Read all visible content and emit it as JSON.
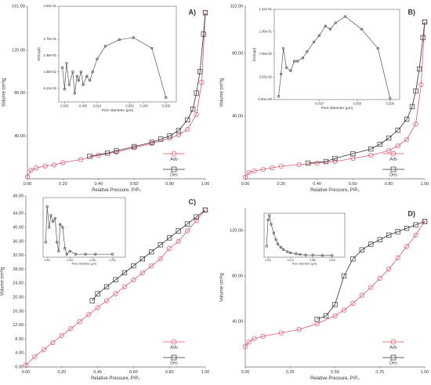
{
  "chart_data": [
    {
      "type": "line",
      "panel_label": "A)",
      "ylabel": "Volume cm³/g",
      "xlabel": "Relative Pressure, P/P₀",
      "xlim": [
        0,
        1
      ],
      "xticks": [
        {
          "value": 0,
          "label": "0.00"
        },
        {
          "value": 0.2,
          "label": "0.20"
        },
        {
          "value": 0.4,
          "label": "0.40"
        },
        {
          "value": 0.6,
          "label": "0.60"
        },
        {
          "value": 0.8,
          "label": "0.80"
        },
        {
          "value": 1,
          "label": "1.00"
        }
      ],
      "ylim": [
        0,
        161
      ],
      "yticks": [
        {
          "value": 40,
          "label": "40.00"
        },
        {
          "value": 80,
          "label": "80.00"
        },
        {
          "value": 120,
          "label": "120.00"
        },
        {
          "value": 161,
          "label": "161.00"
        }
      ],
      "legend": "lower right",
      "series": [
        {
          "name": "Ads",
          "color": "#e0566c",
          "marker": "circle",
          "x": [
            0,
            0.02,
            0.05,
            0.1,
            0.15,
            0.2,
            0.3,
            0.4,
            0.5,
            0.6,
            0.7,
            0.8,
            0.85,
            0.9,
            0.95,
            0.98,
            1
          ],
          "values": [
            2,
            8,
            10,
            12,
            13,
            15,
            18,
            22,
            25,
            29,
            33,
            38,
            41,
            46,
            60,
            90,
            155
          ]
        },
        {
          "name": "Des",
          "color": "#333333",
          "marker": "square",
          "x": [
            0.35,
            0.45,
            0.5,
            0.6,
            0.7,
            0.75,
            0.8,
            0.85,
            0.9,
            0.93,
            0.95,
            0.97,
            0.99,
            1
          ],
          "values": [
            21,
            24,
            26,
            30,
            34,
            37,
            40,
            45,
            55,
            65,
            80,
            100,
            135,
            155
          ]
        }
      ],
      "inset": {
        "type": "line",
        "xlog": true,
        "ylabel": "dV(logd)",
        "xlabel": "Pore diameter (µm)",
        "xlim": [
          0.0015,
          0.5
        ],
        "xticks": [
          0.002,
          0.005,
          {
            "value": 0.01,
            "label": "0.010"
          },
          {
            "value": 0.05,
            "label": "0.050"
          },
          {
            "value": 0.1,
            "label": "0.100"
          },
          {
            "value": 0.3,
            "label": "0.300"
          }
        ],
        "ylim": [
          0.03,
          0.253
        ],
        "yticks": [
          {
            "value": 0.061,
            "label": "6.13e-02"
          },
          {
            "value": 0.1,
            "label": "1.00e-01"
          },
          {
            "value": 0.138,
            "label": "1.38e-01"
          },
          {
            "value": 0.176,
            "label": "1.76e-01"
          },
          {
            "value": 0.253,
            "label": "2.53e-01"
          }
        ],
        "series": [
          {
            "color": "#555555",
            "x": [
              0.0018,
              0.002,
              0.0022,
              0.0025,
              0.003,
              0.0033,
              0.0037,
              0.004,
              0.0045,
              0.005,
              0.006,
              0.007,
              0.008,
              0.01,
              0.015,
              0.03,
              0.06,
              0.15,
              0.3
            ],
            "values": [
              0.11,
              0.06,
              0.12,
              0.07,
              0.1,
              0.05,
              0.09,
              0.08,
              0.1,
              0.07,
              0.09,
              0.08,
              0.1,
              0.13,
              0.16,
              0.175,
              0.18,
              0.155,
              0.04
            ]
          }
        ]
      }
    },
    {
      "type": "line",
      "panel_label": "B)",
      "ylabel": "Volume cm³/g",
      "xlabel": "Relative Pressure, P/P₀",
      "xlim": [
        0,
        1
      ],
      "xticks": [
        {
          "value": 0,
          "label": "0.00"
        },
        {
          "value": 0.2,
          "label": "0.20"
        },
        {
          "value": 0.4,
          "label": "0.40"
        },
        {
          "value": 0.6,
          "label": "0.60"
        },
        {
          "value": 0.8,
          "label": "0.80"
        },
        {
          "value": 1,
          "label": "1.00"
        }
      ],
      "ylim": [
        0,
        110
      ],
      "yticks": [
        {
          "value": 40,
          "label": "40.00"
        },
        {
          "value": 80,
          "label": "80.00"
        },
        {
          "value": 110,
          "label": "110.00"
        }
      ],
      "legend": "lower right",
      "series": [
        {
          "name": "Ads",
          "color": "#e0566c",
          "marker": "circle",
          "x": [
            0,
            0.02,
            0.05,
            0.1,
            0.15,
            0.2,
            0.3,
            0.4,
            0.5,
            0.6,
            0.7,
            0.8,
            0.85,
            0.9,
            0.95,
            0.98,
            1
          ],
          "values": [
            1,
            4,
            5,
            6,
            7,
            8,
            9,
            10,
            11,
            13,
            15,
            18,
            21,
            25,
            35,
            60,
            100
          ]
        },
        {
          "name": "Des",
          "color": "#333333",
          "marker": "square",
          "x": [
            0.35,
            0.45,
            0.5,
            0.6,
            0.7,
            0.75,
            0.8,
            0.85,
            0.9,
            0.93,
            0.95,
            0.97,
            0.99,
            1
          ],
          "values": [
            10,
            11,
            13,
            16,
            19,
            22,
            26,
            31,
            38,
            46,
            56,
            70,
            90,
            100
          ]
        }
      ],
      "inset": {
        "type": "line",
        "xlog": true,
        "ylabel": "dV(logd)",
        "xlabel": "Pore diameter (µm)",
        "xlim": [
          0.0015,
          0.3
        ],
        "xticks": [
          {
            "value": 0.01,
            "label": "0.010"
          },
          {
            "value": 0.05,
            "label": "0.050"
          },
          {
            "value": 0.2,
            "label": "0.200"
          }
        ],
        "ylim": [
          0,
          0.141
        ],
        "yticks": [
          {
            "value": 0,
            "label": "0.00e+00"
          },
          {
            "value": 0.035,
            "label": "3.53e-02"
          },
          {
            "value": 0.071,
            "label": "7.05e-02"
          },
          {
            "value": 0.106,
            "label": "1.06e-01"
          },
          {
            "value": 0.141,
            "label": "1.41e-01"
          }
        ],
        "series": [
          {
            "color": "#555555",
            "x": [
              0.0018,
              0.002,
              0.0022,
              0.0025,
              0.003,
              0.0035,
              0.004,
              0.005,
              0.006,
              0.008,
              0.01,
              0.013,
              0.016,
              0.02,
              0.03,
              0.06,
              0.12,
              0.2
            ],
            "values": [
              0.005,
              0.04,
              0.08,
              0.05,
              0.045,
              0.06,
              0.06,
              0.065,
              0.075,
              0.09,
              0.1,
              0.115,
              0.11,
              0.12,
              0.13,
              0.11,
              0.08,
              0.002
            ]
          }
        ]
      }
    },
    {
      "type": "line",
      "panel_label": "C)",
      "ylabel": "Volume cm³/g",
      "xlabel": "Relative Pressure, P/P₀",
      "xlim": [
        0,
        1
      ],
      "xticks": [
        {
          "value": 0,
          "label": "0.00"
        },
        {
          "value": 0.2,
          "label": "0.20"
        },
        {
          "value": 0.4,
          "label": "0.40"
        },
        {
          "value": 0.6,
          "label": "0.60"
        },
        {
          "value": 0.8,
          "label": "0.80"
        },
        {
          "value": 1,
          "label": "1.00"
        }
      ],
      "ylim": [
        0,
        49
      ],
      "yticks": [
        {
          "value": 0,
          "label": "0.00"
        },
        {
          "value": 4,
          "label": "4.00"
        },
        {
          "value": 8,
          "label": "8.00"
        },
        {
          "value": 12,
          "label": "12.00"
        },
        {
          "value": 16,
          "label": "16.00"
        },
        {
          "value": 20,
          "label": "20.00"
        },
        {
          "value": 24,
          "label": "24.00"
        },
        {
          "value": 28,
          "label": "28.00"
        },
        {
          "value": 32,
          "label": "32.00"
        },
        {
          "value": 36,
          "label": "36.00"
        },
        {
          "value": 40,
          "label": "40.00"
        },
        {
          "value": 44,
          "label": "44.00"
        },
        {
          "value": 49,
          "label": "49.00"
        }
      ],
      "legend": "lower right",
      "series": [
        {
          "name": "Ads",
          "color": "#e0566c",
          "marker": "circle",
          "x": [
            0,
            0.05,
            0.1,
            0.15,
            0.2,
            0.25,
            0.3,
            0.35,
            0.4,
            0.45,
            0.5,
            0.55,
            0.6,
            0.65,
            0.7,
            0.75,
            0.8,
            0.85,
            0.9,
            0.95,
            1
          ],
          "values": [
            0.5,
            3,
            5,
            7,
            9,
            11,
            13,
            15,
            17,
            19,
            21,
            23,
            25,
            27,
            29,
            31,
            34,
            36,
            39,
            42,
            45
          ]
        },
        {
          "name": "Des",
          "color": "#333333",
          "marker": "square",
          "x": [
            0.37,
            0.4,
            0.45,
            0.5,
            0.55,
            0.6,
            0.65,
            0.7,
            0.75,
            0.8,
            0.85,
            0.9,
            0.95,
            1
          ],
          "values": [
            19,
            21,
            23,
            25,
            27,
            29,
            31,
            33,
            35,
            37,
            39,
            41,
            43,
            45
          ]
        }
      ],
      "inset": {
        "type": "line",
        "xlog": true,
        "xlabel": "Pore diameter (µm)",
        "xlim": [
          0.0015,
          0.5
        ],
        "xticks": [
          0.002,
          {
            "value": 0.01,
            "label": "0.010"
          },
          {
            "value": 0.05,
            "label": "0.050"
          },
          {
            "value": 0.2,
            "label": "0.200"
          }
        ],
        "ylim": [
          0,
          0.2
        ],
        "yticks": [],
        "series": [
          {
            "color": "#555555",
            "x": [
              0.0018,
              0.002,
              0.0023,
              0.0026,
              0.003,
              0.0035,
              0.004,
              0.0045,
              0.005,
              0.006,
              0.007,
              0.008,
              0.01,
              0.015,
              0.03,
              0.06,
              0.2
            ],
            "values": [
              0.05,
              0.17,
              0.1,
              0.14,
              0.12,
              0.13,
              0.05,
              0.02,
              0.11,
              0.1,
              0.03,
              0.01,
              0.02,
              0.01,
              0.01,
              0.01,
              0.01
            ]
          }
        ]
      }
    },
    {
      "type": "line",
      "panel_label": "D)",
      "ylabel": "Volume cm³/g",
      "xlabel": "Relative Pressure, P/P₀",
      "xlim": [
        0,
        1
      ],
      "xticks": [
        {
          "value": 0,
          "label": "0.00"
        },
        0.25,
        {
          "value": 0.5,
          "label": "0.50"
        },
        0.75,
        {
          "value": 1,
          "label": "1.00"
        }
      ],
      "ylim": [
        0,
        140
      ],
      "yticks": [
        {
          "value": 40,
          "label": "40.00"
        },
        {
          "value": 80,
          "label": "80.00"
        },
        {
          "value": 120,
          "label": "120.00"
        }
      ],
      "legend": "lower right",
      "series": [
        {
          "name": "Ads",
          "color": "#e0566c",
          "marker": "circle",
          "x": [
            0,
            0.02,
            0.05,
            0.1,
            0.2,
            0.3,
            0.4,
            0.5,
            0.55,
            0.6,
            0.65,
            0.7,
            0.75,
            0.8,
            0.85,
            0.9,
            0.95,
            1
          ],
          "values": [
            18,
            22,
            25,
            27,
            30,
            33,
            38,
            45,
            50,
            56,
            63,
            70,
            78,
            86,
            96,
            106,
            116,
            128
          ]
        },
        {
          "name": "Des",
          "color": "#333333",
          "marker": "square",
          "x": [
            0.4,
            0.45,
            0.5,
            0.55,
            0.6,
            0.65,
            0.7,
            0.75,
            0.8,
            0.85,
            0.9,
            0.95,
            1
          ],
          "values": [
            42,
            45,
            55,
            80,
            95,
            103,
            108,
            112,
            116,
            119,
            122,
            125,
            128
          ]
        }
      ],
      "inset": {
        "type": "line",
        "xlog": true,
        "xlabel": "Pore diameter (µm)",
        "xlim": [
          0.0015,
          0.5
        ],
        "xticks": [
          0.002,
          {
            "value": 0.01,
            "label": "0.010"
          },
          {
            "value": 0.05,
            "label": "0.050"
          },
          {
            "value": 0.2,
            "label": "0.200"
          }
        ],
        "ylim": [
          0,
          0.2
        ],
        "yticks": [],
        "series": [
          {
            "color": "#555555",
            "x": [
              0.0018,
              0.002,
              0.0022,
              0.0025,
              0.003,
              0.0035,
              0.004,
              0.005,
              0.006,
              0.008,
              0.01,
              0.015,
              0.02,
              0.03,
              0.05,
              0.1,
              0.2
            ],
            "values": [
              0.05,
              0.17,
              0.19,
              0.15,
              0.11,
              0.08,
              0.06,
              0.045,
              0.035,
              0.025,
              0.02,
              0.015,
              0.012,
              0.01,
              0.01,
              0.008,
              0.008
            ]
          }
        ]
      }
    }
  ]
}
